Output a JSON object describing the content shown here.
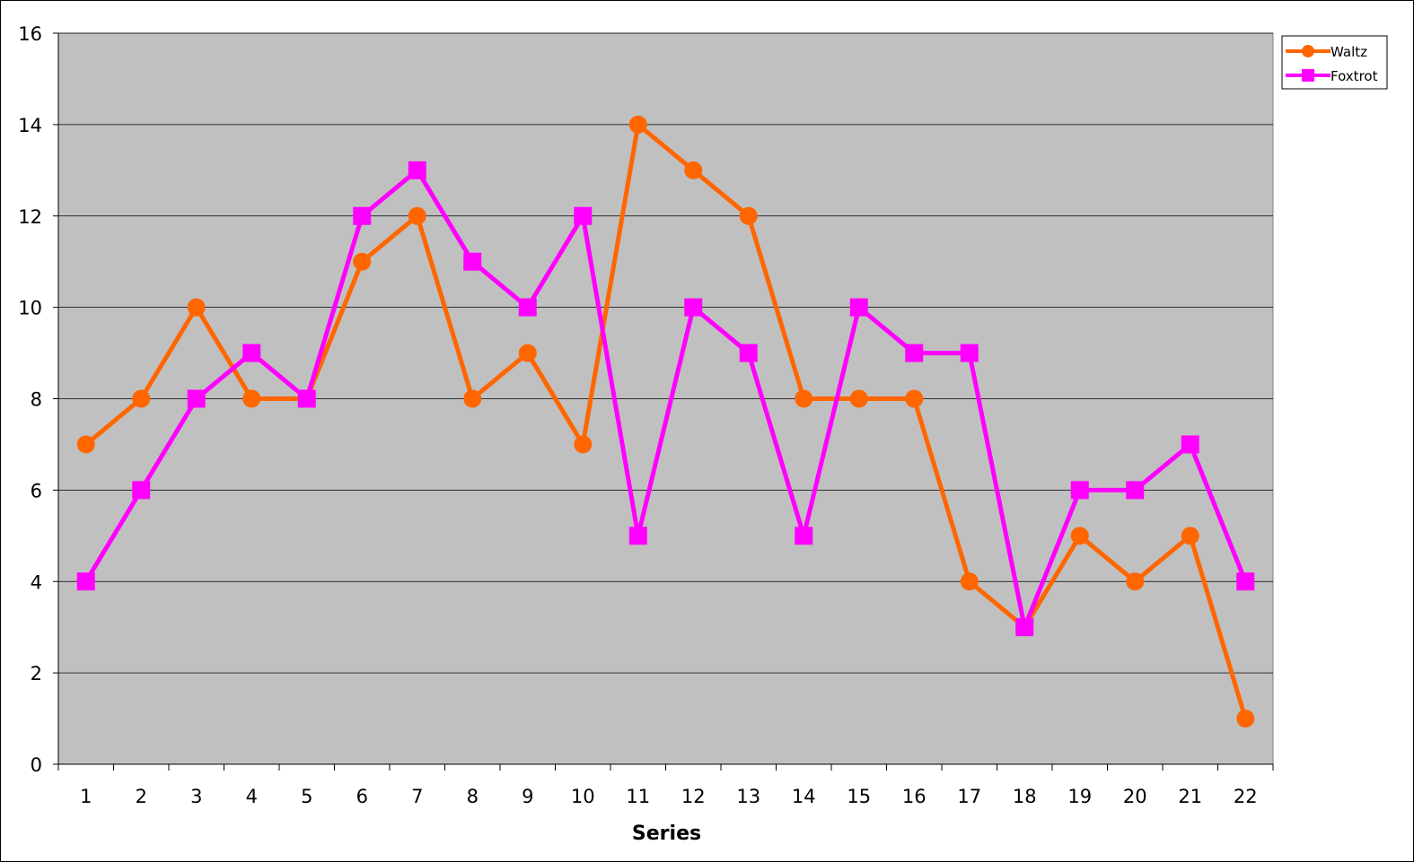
{
  "chart_data": {
    "type": "line",
    "title": "",
    "xlabel": "Series",
    "ylabel": "",
    "categories": [
      "1",
      "2",
      "3",
      "4",
      "5",
      "6",
      "7",
      "8",
      "9",
      "10",
      "11",
      "12",
      "13",
      "14",
      "15",
      "16",
      "17",
      "18",
      "19",
      "20",
      "21",
      "22"
    ],
    "ylim": [
      0,
      16
    ],
    "yticks": [
      0,
      2,
      4,
      6,
      8,
      10,
      12,
      14,
      16
    ],
    "grid": true,
    "legend_position": "top-right",
    "plot_background": "#c0c0c0",
    "series": [
      {
        "name": "Waltz",
        "color": "#ff6600",
        "marker": "circle",
        "values": [
          7,
          8,
          10,
          8,
          8,
          11,
          12,
          8,
          9,
          7,
          14,
          13,
          12,
          8,
          8,
          8,
          4,
          3,
          5,
          4,
          5,
          1
        ]
      },
      {
        "name": "Foxtrot",
        "color": "#ff00ff",
        "marker": "square",
        "values": [
          4,
          6,
          8,
          9,
          8,
          12,
          13,
          11,
          10,
          12,
          5,
          10,
          9,
          5,
          10,
          9,
          9,
          3,
          6,
          6,
          7,
          4
        ]
      }
    ]
  }
}
